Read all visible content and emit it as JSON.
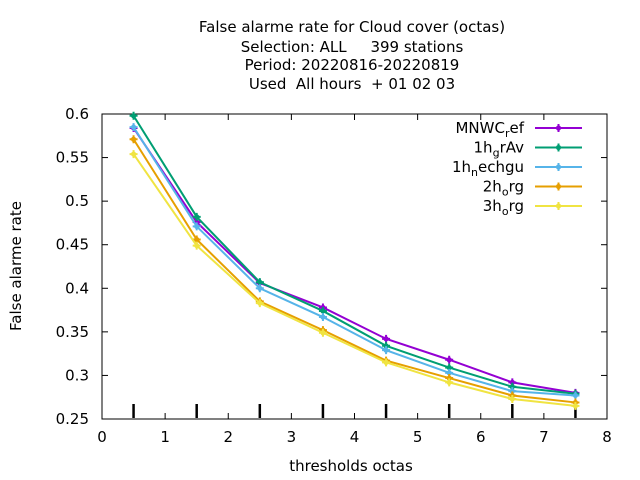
{
  "chart_data": {
    "type": "line",
    "title_lines": [
      "False alarme rate  for Cloud cover (octas)",
      "Selection: ALL     399 stations",
      "Period: 20220816-20220819",
      "Used  All hours  + 01 02 03"
    ],
    "xlabel": "thresholds octas",
    "ylabel": "False alarme rate",
    "xlim": [
      0,
      8
    ],
    "ylim": [
      0.25,
      0.6
    ],
    "xticks": [
      "0",
      "1",
      "2",
      "3",
      "4",
      "5",
      "6",
      "7",
      "8"
    ],
    "yticks": [
      "0.25",
      "0.3",
      "0.35",
      "0.4",
      "0.45",
      "0.5",
      "0.55",
      "0.6"
    ],
    "legend_position": "top-right",
    "grid": false,
    "x": [
      0.5,
      1.5,
      2.5,
      3.5,
      4.5,
      5.5,
      6.5,
      7.5
    ],
    "series": [
      {
        "name_base": "MNWC",
        "name_sub": "r",
        "name_rest": "ef",
        "color": "#9400d3",
        "values": [
          0.584,
          0.476,
          0.406,
          0.378,
          0.342,
          0.318,
          0.292,
          0.28
        ]
      },
      {
        "name_base": "1h",
        "name_sub": "g",
        "name_rest": "rAv",
        "color": "#009e73",
        "values": [
          0.598,
          0.482,
          0.407,
          0.374,
          0.334,
          0.309,
          0.287,
          0.279
        ]
      },
      {
        "name_base": "1h",
        "name_sub": "n",
        "name_rest": "echgu",
        "color": "#56b4e9",
        "values": [
          0.585,
          0.471,
          0.4,
          0.367,
          0.329,
          0.303,
          0.282,
          0.277
        ]
      },
      {
        "name_base": "2h",
        "name_sub": "o",
        "name_rest": "rg",
        "color": "#e69f00",
        "values": [
          0.571,
          0.456,
          0.385,
          0.352,
          0.317,
          0.297,
          0.277,
          0.269
        ]
      },
      {
        "name_base": "3h",
        "name_sub": "o",
        "name_rest": "rg",
        "color": "#f0e442",
        "values": [
          0.554,
          0.449,
          0.383,
          0.349,
          0.315,
          0.292,
          0.273,
          0.265
        ]
      }
    ],
    "threshold_markers": [
      0.5,
      1.5,
      2.5,
      3.5,
      4.5,
      5.5,
      6.5,
      7.5
    ]
  }
}
